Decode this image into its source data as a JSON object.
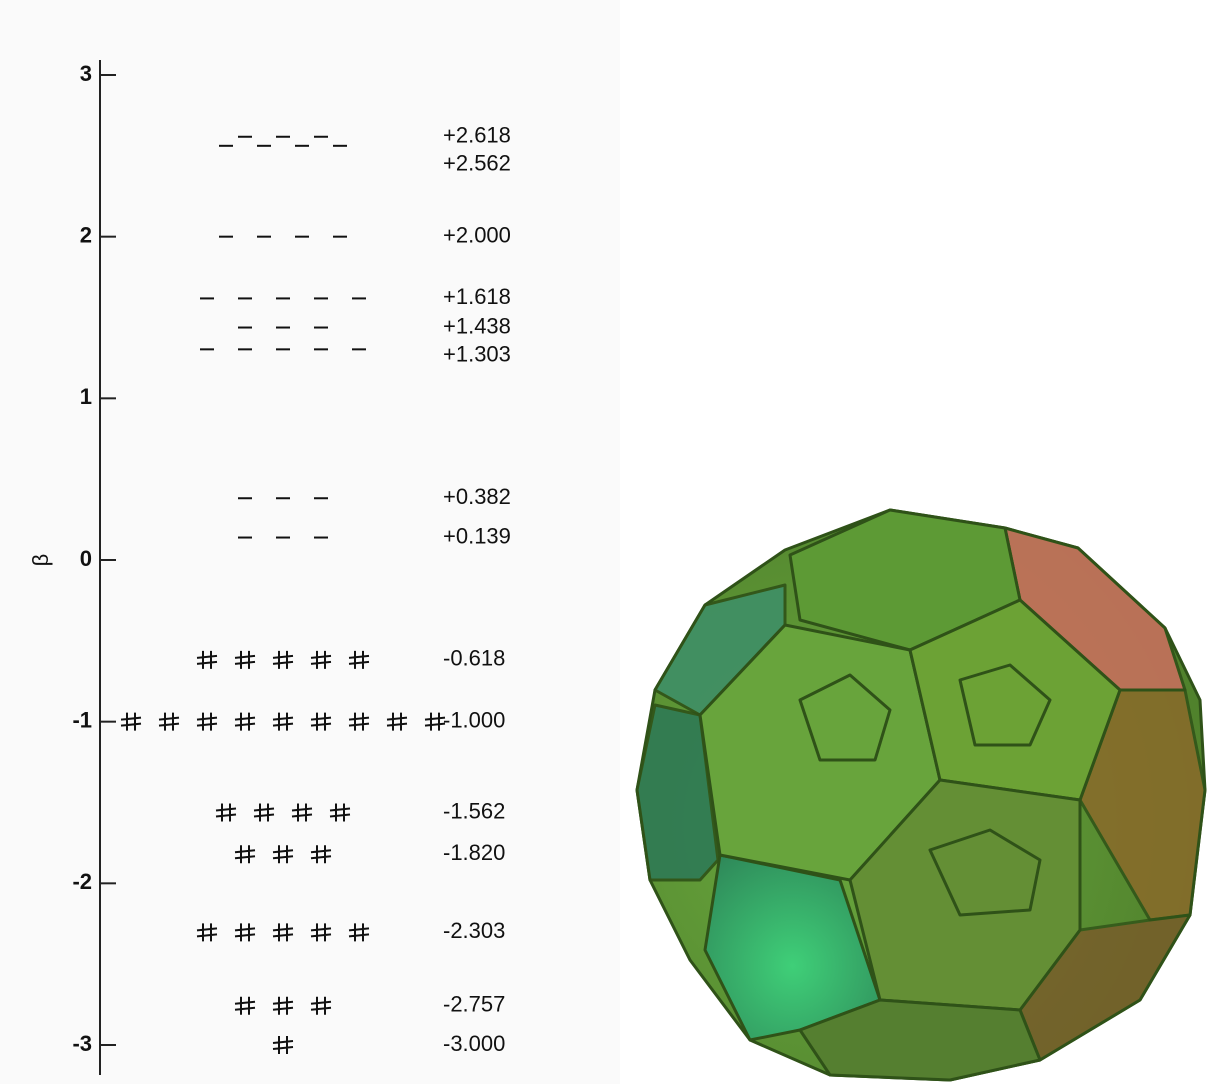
{
  "axis": {
    "label": "β",
    "ticks": [
      3,
      2,
      1,
      0,
      -1,
      -2,
      -3
    ],
    "range": [
      3,
      -3
    ]
  },
  "levels": [
    {
      "label": "+2.618",
      "energy": 2.618,
      "degeneracy": 3,
      "occupied": false
    },
    {
      "label": "+2.562",
      "energy": 2.562,
      "degeneracy": 4,
      "occupied": false
    },
    {
      "label": "+2.000",
      "energy": 2.0,
      "degeneracy": 4,
      "occupied": false
    },
    {
      "label": "+1.618",
      "energy": 1.618,
      "degeneracy": 5,
      "occupied": false
    },
    {
      "label": "+1.438",
      "energy": 1.438,
      "degeneracy": 3,
      "occupied": false
    },
    {
      "label": "+1.303",
      "energy": 1.303,
      "degeneracy": 5,
      "occupied": false
    },
    {
      "label": "+0.382",
      "energy": 0.382,
      "degeneracy": 3,
      "occupied": false
    },
    {
      "label": "+0.139",
      "energy": 0.139,
      "degeneracy": 3,
      "occupied": false
    },
    {
      "label": "-0.618",
      "energy": -0.618,
      "degeneracy": 5,
      "occupied": true
    },
    {
      "label": "-1.000",
      "energy": -1.0,
      "degeneracy": 9,
      "occupied": true
    },
    {
      "label": "-1.562",
      "energy": -1.562,
      "degeneracy": 4,
      "occupied": true
    },
    {
      "label": "-1.820",
      "energy": -1.82,
      "degeneracy": 3,
      "occupied": true
    },
    {
      "label": "-2.303",
      "energy": -2.303,
      "degeneracy": 5,
      "occupied": true
    },
    {
      "label": "-2.757",
      "energy": -2.757,
      "degeneracy": 3,
      "occupied": true
    },
    {
      "label": "-3.000",
      "energy": -3.0,
      "degeneracy": 1,
      "occupied": true
    }
  ]
}
